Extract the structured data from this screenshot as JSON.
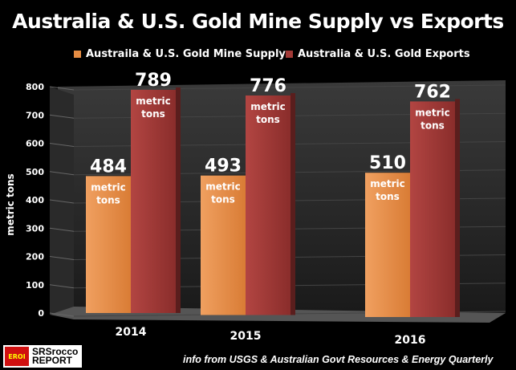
{
  "title": "Australia & U.S. Gold Mine Supply vs Exports",
  "source": "info from USGS & Australian Govt Resources & Energy Quarterly",
  "logo": {
    "badge": "EROI",
    "line1": "SRSrocco",
    "line2": "REPORT"
  },
  "colors": {
    "supply": "#e58c43",
    "exports": "#a23a37"
  },
  "chart_data": {
    "type": "bar",
    "title": "Australia & U.S. Gold Mine Supply vs Exports",
    "categories": [
      "2014",
      "2015",
      "2016"
    ],
    "series": [
      {
        "name": "Austraila & U.S. Gold Mine Supply",
        "values": [
          484,
          493,
          510
        ]
      },
      {
        "name": "Australia & U.S. Gold Exports",
        "values": [
          789,
          776,
          762
        ]
      }
    ],
    "unit_label": "metric tons",
    "ylabel": "metric tons",
    "ylim": [
      0,
      800
    ],
    "yticks": [
      0,
      100,
      200,
      300,
      400,
      500,
      600,
      700,
      800
    ],
    "legend": "top"
  }
}
